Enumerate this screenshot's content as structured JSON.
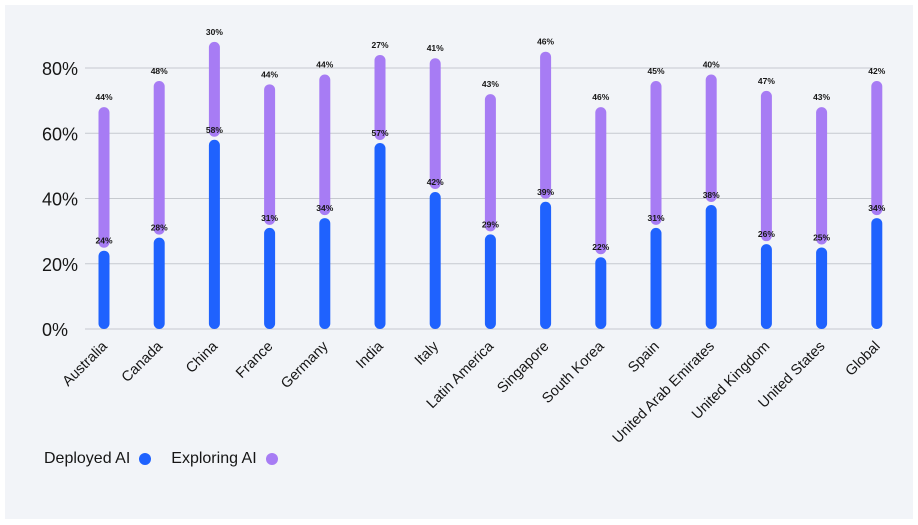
{
  "chart_data": {
    "type": "bar",
    "title": "",
    "xlabel": "",
    "ylabel": "",
    "ylim": [
      0,
      0.8
    ],
    "yticks": [
      "0%",
      "20%",
      "40%",
      "60%",
      "80%"
    ],
    "grid": true,
    "legend_position": "bottom-left",
    "categories": [
      "Australia",
      "Canada",
      "China",
      "France",
      "Germany",
      "India",
      "Italy",
      "Latin America",
      "Singapore",
      "South Korea",
      "Spain",
      "United Arab Emirates",
      "United Kingdom",
      "United States",
      "Global"
    ],
    "series": [
      {
        "name": "Deployed AI",
        "color": "#1f62fe",
        "values": [
          0.24,
          0.28,
          0.58,
          0.31,
          0.34,
          0.57,
          0.42,
          0.29,
          0.39,
          0.22,
          0.31,
          0.38,
          0.26,
          0.25,
          0.34
        ],
        "labels": [
          "24%",
          "28%",
          "58%",
          "31%",
          "34%",
          "57%",
          "42%",
          "29%",
          "39%",
          "22%",
          "31%",
          "38%",
          "26%",
          "25%",
          "34%"
        ]
      },
      {
        "name": "Exploring AI",
        "color": "#a77cf4",
        "values": [
          0.44,
          0.48,
          0.3,
          0.44,
          0.44,
          0.27,
          0.41,
          0.43,
          0.46,
          0.46,
          0.45,
          0.4,
          0.47,
          0.43,
          0.42
        ],
        "labels": [
          "44%",
          "48%",
          "30%",
          "44%",
          "44%",
          "27%",
          "41%",
          "43%",
          "46%",
          "46%",
          "45%",
          "40%",
          "47%",
          "43%",
          "42%"
        ]
      }
    ]
  },
  "legend": {
    "deployed": "Deployed AI",
    "exploring": "Exploring AI"
  }
}
